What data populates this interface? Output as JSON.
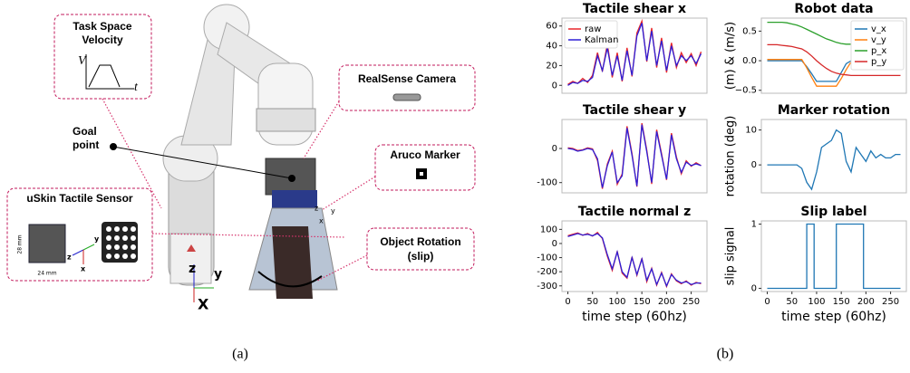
{
  "figure_a": {
    "task_space": {
      "title": [
        "Task Space",
        "Velocity"
      ],
      "y_axis": "V",
      "x_axis": "t"
    },
    "camera": "RealSense Camera",
    "goal": [
      "Goal",
      "point"
    ],
    "marker": "Aruco Marker",
    "marker_frame": [
      "z",
      "x",
      "y"
    ],
    "sensor": {
      "title": "uSkin Tactile Sensor",
      "height": "28 mm",
      "width": "24 mm",
      "frame": [
        "z",
        "y",
        "x"
      ]
    },
    "rotation": [
      "Object Rotation",
      "(slip)"
    ],
    "base_frame": [
      "z",
      "y",
      "X"
    ],
    "caption": "(a)"
  },
  "caption_b": "(b)",
  "chart_data": [
    {
      "type": "line",
      "title": "Tactile shear x",
      "xlim": [
        -12,
        282
      ],
      "ylim": [
        -8,
        68
      ],
      "yticks": [
        0,
        20,
        40,
        60
      ],
      "legend": "upper left",
      "x": [
        0,
        10,
        20,
        30,
        40,
        50,
        60,
        70,
        80,
        90,
        100,
        110,
        120,
        130,
        140,
        150,
        160,
        170,
        180,
        190,
        200,
        210,
        220,
        230,
        240,
        250,
        260,
        270
      ],
      "series": [
        {
          "name": "raw",
          "color": "#e8262a",
          "values": [
            1,
            4,
            2,
            7,
            3,
            10,
            33,
            14,
            42,
            8,
            33,
            4,
            38,
            9,
            53,
            65,
            24,
            58,
            18,
            48,
            13,
            43,
            18,
            33,
            23,
            32,
            20,
            34
          ]
        },
        {
          "name": "Kalman",
          "color": "#2d1fd6",
          "values": [
            0,
            3,
            2,
            5,
            4,
            8,
            30,
            15,
            38,
            10,
            30,
            5,
            35,
            10,
            50,
            63,
            25,
            55,
            20,
            45,
            15,
            40,
            20,
            30,
            25,
            30,
            22,
            32
          ]
        }
      ]
    },
    {
      "type": "line",
      "title": "Robot data",
      "ylabel": "(m) & (m/s)",
      "xlim": [
        -12,
        282
      ],
      "ylim": [
        -0.55,
        0.72
      ],
      "legend": "upper right",
      "yticks": [
        {
          "value": -0.5,
          "label": "−0.5"
        },
        {
          "value": 0,
          "label": "0.0"
        },
        0.5
      ],
      "x": [
        0,
        10,
        20,
        30,
        40,
        50,
        60,
        70,
        80,
        90,
        100,
        110,
        120,
        130,
        140,
        150,
        160,
        170,
        180,
        190,
        200,
        210,
        220,
        230,
        240,
        250,
        260,
        270
      ],
      "series": [
        {
          "name": "v_x",
          "color": "#1f77b4",
          "values": [
            0,
            0,
            0,
            0,
            0,
            0,
            0,
            0,
            -0.1,
            -0.22,
            -0.35,
            -0.35,
            -0.35,
            -0.35,
            -0.35,
            -0.2,
            -0.05,
            0,
            0,
            0,
            0,
            0,
            0,
            0,
            0,
            0,
            0,
            0
          ]
        },
        {
          "name": "v_y",
          "color": "#ff7f0e",
          "values": [
            0.02,
            0.02,
            0.02,
            0.02,
            0.02,
            0.02,
            0.02,
            0.02,
            -0.12,
            -0.28,
            -0.43,
            -0.43,
            -0.43,
            -0.43,
            -0.43,
            -0.3,
            -0.15,
            -0.02,
            0,
            0,
            0,
            0,
            0,
            0,
            0,
            0,
            0,
            0
          ]
        },
        {
          "name": "p_x",
          "color": "#2ca02c",
          "values": [
            0.65,
            0.65,
            0.65,
            0.65,
            0.64,
            0.62,
            0.6,
            0.57,
            0.53,
            0.49,
            0.45,
            0.41,
            0.37,
            0.34,
            0.31,
            0.29,
            0.28,
            0.28,
            0.28,
            0.28,
            0.28,
            0.28,
            0.28,
            0.28,
            0.28,
            0.28,
            0.28,
            0.28
          ]
        },
        {
          "name": "p_y",
          "color": "#d62728",
          "values": [
            0.27,
            0.27,
            0.27,
            0.26,
            0.25,
            0.24,
            0.22,
            0.2,
            0.15,
            0.08,
            0,
            -0.07,
            -0.13,
            -0.18,
            -0.21,
            -0.23,
            -0.24,
            -0.25,
            -0.25,
            -0.25,
            -0.25,
            -0.25,
            -0.25,
            -0.25,
            -0.25,
            -0.25,
            -0.25,
            -0.25
          ]
        }
      ]
    },
    {
      "type": "line",
      "title": "Tactile shear y",
      "xlim": [
        -12,
        282
      ],
      "ylim": [
        -130,
        85
      ],
      "yticks": [
        -100,
        0
      ],
      "x": [
        0,
        10,
        20,
        30,
        40,
        50,
        60,
        70,
        80,
        90,
        100,
        110,
        120,
        130,
        140,
        150,
        160,
        170,
        180,
        190,
        200,
        210,
        220,
        230,
        240,
        250,
        260,
        270
      ],
      "series": [
        {
          "name": "raw",
          "color": "#e8262a",
          "values": [
            2,
            0,
            -6,
            -4,
            2,
            -1,
            -35,
            -118,
            -45,
            -8,
            -105,
            -75,
            65,
            -15,
            -112,
            74,
            -5,
            -104,
            55,
            -15,
            -92,
            45,
            -25,
            -74,
            -36,
            -52,
            -42,
            -50
          ]
        },
        {
          "name": "Kalman",
          "color": "#2d1fd6",
          "values": [
            0,
            -2,
            -8,
            -5,
            0,
            -3,
            -30,
            -115,
            -50,
            -10,
            -100,
            -80,
            60,
            -20,
            -110,
            70,
            -10,
            -100,
            50,
            -20,
            -90,
            40,
            -30,
            -70,
            -40,
            -50,
            -45,
            -50
          ]
        }
      ]
    },
    {
      "type": "line",
      "title": "Marker rotation",
      "ylabel": "rotation (deg)",
      "xlim": [
        -12,
        282
      ],
      "ylim": [
        -8,
        13
      ],
      "yticks": [
        0,
        10
      ],
      "x": [
        0,
        10,
        20,
        30,
        40,
        50,
        60,
        70,
        80,
        90,
        100,
        110,
        120,
        130,
        140,
        150,
        160,
        170,
        180,
        190,
        200,
        210,
        220,
        230,
        240,
        250,
        260,
        270
      ],
      "series": [
        {
          "name": "rotation",
          "color": "#1f77b4",
          "values": [
            0,
            0,
            0,
            0,
            0,
            0,
            0,
            -1,
            -5,
            -7,
            -2,
            5,
            6,
            7,
            10,
            9,
            1,
            -2,
            5,
            3,
            1,
            4,
            2,
            3,
            2,
            2,
            3,
            3
          ]
        }
      ]
    },
    {
      "type": "line",
      "title": "Tactile normal z",
      "xlim": [
        -12,
        282
      ],
      "ylim": [
        -340,
        160
      ],
      "yticks": [
        -300,
        -200,
        -100,
        0,
        100
      ],
      "xlabel": "time step (60hz)",
      "xticks": [
        0,
        50,
        100,
        150,
        200,
        250
      ],
      "x": [
        0,
        10,
        20,
        30,
        40,
        50,
        60,
        70,
        80,
        90,
        100,
        110,
        120,
        130,
        140,
        150,
        160,
        170,
        180,
        190,
        200,
        210,
        220,
        230,
        240,
        250,
        260,
        270
      ],
      "series": [
        {
          "name": "raw",
          "color": "#e8262a",
          "values": [
            55,
            65,
            75,
            58,
            70,
            52,
            78,
            35,
            -90,
            -190,
            -55,
            -210,
            -245,
            -95,
            -225,
            -105,
            -270,
            -175,
            -295,
            -205,
            -305,
            -215,
            -265,
            -285,
            -265,
            -295,
            -275,
            -285
          ]
        },
        {
          "name": "Kalman",
          "color": "#2d1fd6",
          "values": [
            50,
            60,
            70,
            60,
            65,
            55,
            70,
            40,
            -80,
            -180,
            -60,
            -200,
            -240,
            -100,
            -220,
            -110,
            -260,
            -180,
            -290,
            -210,
            -300,
            -220,
            -260,
            -280,
            -270,
            -290,
            -280,
            -280
          ]
        }
      ]
    },
    {
      "type": "line",
      "title": "Slip label",
      "ylabel": "slip signal",
      "xlim": [
        -12,
        282
      ],
      "ylim": [
        -0.05,
        1.05
      ],
      "yticks": [
        0,
        1
      ],
      "xlabel": "time step (60hz)",
      "xticks": [
        0,
        50,
        100,
        150,
        200,
        250
      ],
      "x": [
        0,
        80,
        80,
        95,
        95,
        140,
        140,
        195,
        195,
        270
      ],
      "series": [
        {
          "name": "slip",
          "color": "#1f77b4",
          "values": [
            0,
            0,
            1,
            1,
            0,
            0,
            1,
            1,
            0,
            0
          ]
        }
      ]
    }
  ]
}
